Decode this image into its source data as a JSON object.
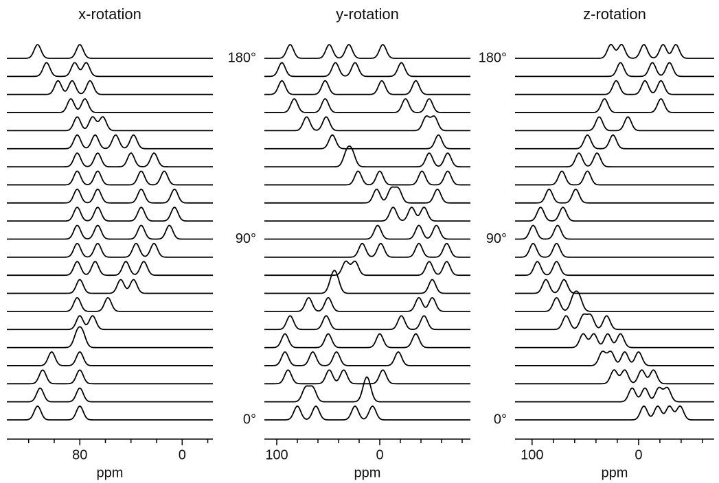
{
  "chart_data": [
    {
      "type": "spectra",
      "title": "x-rotation",
      "xlabel": "ppm",
      "xlim": [
        137,
        -24
      ],
      "xticks": [
        80,
        0
      ],
      "xminorticks": [
        120,
        100,
        60,
        40,
        20,
        -20
      ],
      "ylim": [
        0,
        180
      ],
      "yticks": [],
      "series": [
        {
          "angle": 0,
          "peaks": [
            113,
            80
          ]
        },
        {
          "angle": 9,
          "peaks": [
            111,
            80
          ]
        },
        {
          "angle": 18,
          "peaks": [
            109,
            80
          ]
        },
        {
          "angle": 27,
          "peaks": [
            102,
            80
          ]
        },
        {
          "angle": 36,
          "peaks": [
            82,
            78
          ]
        },
        {
          "angle": 45,
          "peaks": [
            80,
            70
          ]
        },
        {
          "angle": 54,
          "peaks": [
            82,
            58
          ]
        },
        {
          "angle": 63,
          "peaks": [
            80,
            48,
            38
          ]
        },
        {
          "angle": 72,
          "peaks": [
            82,
            68,
            44,
            30
          ]
        },
        {
          "angle": 81,
          "peaks": [
            82,
            66,
            36,
            22
          ]
        },
        {
          "angle": 90,
          "peaks": [
            82,
            66,
            32,
            10
          ]
        },
        {
          "angle": 99,
          "peaks": [
            82,
            66,
            32,
            6
          ]
        },
        {
          "angle": 108,
          "peaks": [
            82,
            66,
            32,
            6
          ]
        },
        {
          "angle": 117,
          "peaks": [
            82,
            66,
            32,
            14
          ]
        },
        {
          "angle": 126,
          "peaks": [
            82,
            66,
            40,
            22
          ]
        },
        {
          "angle": 135,
          "peaks": [
            82,
            68,
            52,
            38
          ]
        },
        {
          "angle": 144,
          "peaks": [
            82,
            70,
            62
          ]
        },
        {
          "angle": 153,
          "peaks": [
            87,
            76
          ]
        },
        {
          "angle": 162,
          "peaks": [
            97,
            86,
            72
          ]
        },
        {
          "angle": 171,
          "peaks": [
            106,
            84,
            75
          ]
        },
        {
          "angle": 180,
          "peaks": [
            113,
            80
          ]
        }
      ]
    },
    {
      "type": "spectra",
      "title": "y-rotation",
      "xlabel": "ppm",
      "xlim": [
        112,
        -88
      ],
      "xticks": [
        100,
        0
      ],
      "xminorticks": [
        80,
        60,
        40,
        20,
        -20,
        -40,
        -60,
        -80
      ],
      "ylim": [
        0,
        180
      ],
      "yticks": [
        {
          "value": 0,
          "label": "0°"
        },
        {
          "value": 90,
          "label": "90°"
        },
        {
          "value": 180,
          "label": "180°"
        }
      ],
      "series": [
        {
          "angle": 0,
          "peaks": [
            80,
            62,
            24,
            7
          ]
        },
        {
          "angle": 9,
          "peaks": [
            72,
            65,
            14,
            11
          ]
        },
        {
          "angle": 18,
          "peaks": [
            89,
            49,
            35,
            -3
          ]
        },
        {
          "angle": 27,
          "peaks": [
            92,
            65,
            42,
            -18
          ]
        },
        {
          "angle": 36,
          "peaks": [
            92,
            50,
            0,
            -35
          ]
        },
        {
          "angle": 45,
          "peaks": [
            87,
            52,
            -21,
            -43
          ]
        },
        {
          "angle": 54,
          "peaks": [
            69,
            50,
            -38,
            -51
          ]
        },
        {
          "angle": 63,
          "peaks": [
            46,
            42,
            -51
          ]
        },
        {
          "angle": 72,
          "peaks": [
            33,
            24,
            -48,
            -65
          ]
        },
        {
          "angle": 81,
          "peaks": [
            17,
            -1,
            -38,
            -65
          ]
        },
        {
          "angle": 90,
          "peaks": [
            2,
            -38,
            -55
          ]
        },
        {
          "angle": 99,
          "peaks": [
            -13,
            -31,
            -43
          ]
        },
        {
          "angle": 108,
          "peaks": [
            3,
            -11,
            -18,
            -56
          ]
        },
        {
          "angle": 117,
          "peaks": [
            21,
            0,
            -41,
            -66
          ]
        },
        {
          "angle": 126,
          "peaks": [
            32,
            27,
            -48,
            -66
          ]
        },
        {
          "angle": 135,
          "peaks": [
            46,
            -57
          ]
        },
        {
          "angle": 144,
          "peaks": [
            71,
            52,
            -45,
            -53
          ]
        },
        {
          "angle": 153,
          "peaks": [
            83,
            53,
            -25,
            -48
          ]
        },
        {
          "angle": 162,
          "peaks": [
            95,
            53,
            -2,
            -35
          ]
        },
        {
          "angle": 171,
          "peaks": [
            95,
            43,
            24,
            -21
          ]
        },
        {
          "angle": 180,
          "peaks": [
            87,
            49,
            30,
            -3
          ]
        }
      ]
    },
    {
      "type": "spectra",
      "title": "z-rotation",
      "xlabel": "ppm",
      "xlim": [
        116,
        -71
      ],
      "xticks": [
        100,
        0
      ],
      "xminorticks": [
        80,
        60,
        40,
        20,
        -20,
        -40,
        -60
      ],
      "ylim": [
        0,
        180
      ],
      "yticks": [
        {
          "value": 0,
          "label": "0°"
        },
        {
          "value": 90,
          "label": "90°"
        },
        {
          "value": 180,
          "label": "180°"
        }
      ],
      "series": [
        {
          "angle": 0,
          "peaks": [
            -5,
            -18,
            -29,
            -39
          ]
        },
        {
          "angle": 9,
          "peaks": [
            6,
            -6,
            -19,
            -27
          ]
        },
        {
          "angle": 18,
          "peaks": [
            23,
            13,
            -3,
            -14
          ]
        },
        {
          "angle": 27,
          "peaks": [
            34,
            26,
            13,
            0
          ]
        },
        {
          "angle": 36,
          "peaks": [
            52,
            42,
            29,
            17
          ]
        },
        {
          "angle": 45,
          "peaks": [
            68,
            52,
            45,
            30
          ]
        },
        {
          "angle": 54,
          "peaks": [
            77,
            61,
            56
          ]
        },
        {
          "angle": 63,
          "peaks": [
            87,
            70
          ]
        },
        {
          "angle": 72,
          "peaks": [
            95,
            77
          ]
        },
        {
          "angle": 81,
          "peaks": [
            99,
            77
          ]
        },
        {
          "angle": 90,
          "peaks": [
            99,
            76
          ]
        },
        {
          "angle": 99,
          "peaks": [
            92,
            71
          ]
        },
        {
          "angle": 108,
          "peaks": [
            84,
            59
          ]
        },
        {
          "angle": 117,
          "peaks": [
            72,
            48
          ]
        },
        {
          "angle": 126,
          "peaks": [
            56,
            39
          ]
        },
        {
          "angle": 135,
          "peaks": [
            48,
            24
          ]
        },
        {
          "angle": 144,
          "peaks": [
            37,
            10
          ]
        },
        {
          "angle": 153,
          "peaks": [
            32,
            -21
          ]
        },
        {
          "angle": 162,
          "peaks": [
            21,
            -6,
            -21
          ]
        },
        {
          "angle": 171,
          "peaks": [
            17,
            -13,
            -29
          ]
        },
        {
          "angle": 180,
          "peaks": [
            26,
            16,
            -5,
            -23,
            -35
          ]
        }
      ]
    }
  ]
}
